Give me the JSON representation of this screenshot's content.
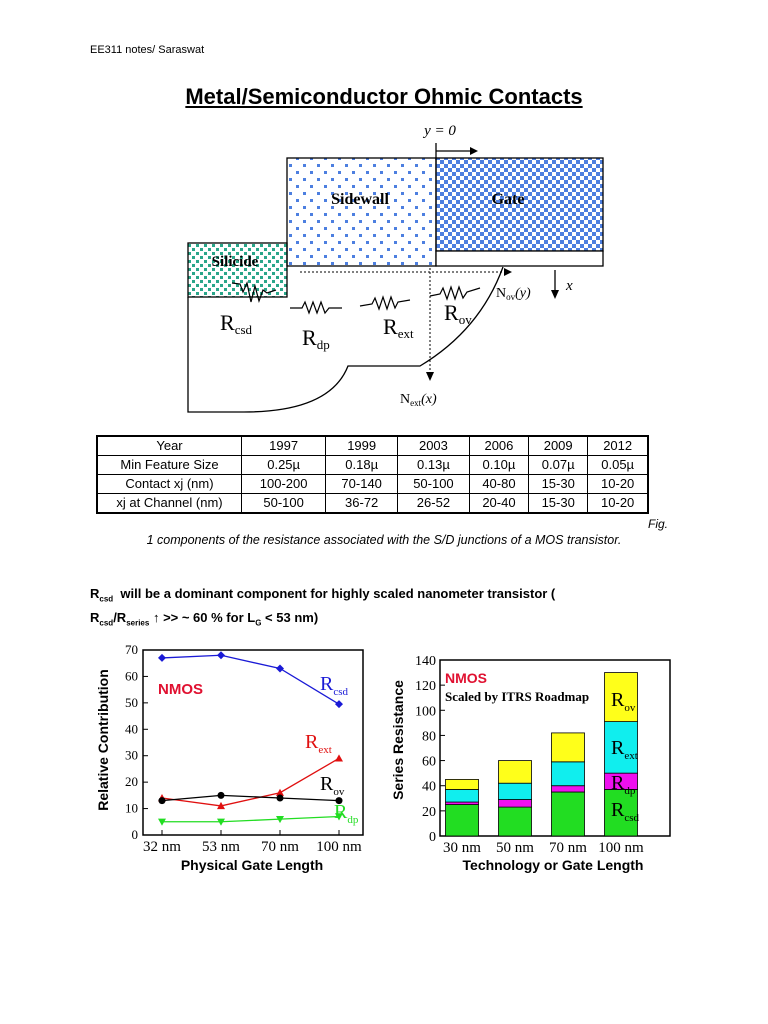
{
  "header": {
    "note": "EE311 notes/ Saraswat"
  },
  "title": "Metal/Semiconductor Ohmic Contacts",
  "diagram": {
    "y0_label": "y = 0",
    "sidewall": "Sidewall",
    "gate": "Gate",
    "silicide": "Silicide",
    "x_label": "x",
    "nov_main": "N",
    "nov_sub": "ov",
    "nov_arg": "(y)",
    "next_main": "N",
    "next_sub": "ext",
    "next_arg": "(x)",
    "resistors": [
      {
        "main": "R",
        "sub": "csd"
      },
      {
        "main": "R",
        "sub": "dp"
      },
      {
        "main": "R",
        "sub": "ext"
      },
      {
        "main": "R",
        "sub": "ov"
      }
    ],
    "colors": {
      "sidewall_dot": "#4d7fe0",
      "gate_check": "#4d7fe0",
      "silicide_dot": "#2aa68a"
    }
  },
  "table": {
    "headers": [
      "Year",
      "1997",
      "1999",
      "2003",
      "2006",
      "2009",
      "2012"
    ],
    "rows": [
      [
        "Min Feature Size",
        "0.25µ",
        "0.18µ",
        "0.13µ",
        "0.10µ",
        "0.07µ",
        "0.05µ"
      ],
      [
        "Contact xj (nm)",
        "100-200",
        "70-140",
        "50-100",
        "40-80",
        "15-30",
        "10-20"
      ],
      [
        "xj at Channel (nm)",
        "50-100",
        "36-72",
        "26-52",
        "20-40",
        "15-30",
        "10-20"
      ]
    ]
  },
  "caption": {
    "fig": "Fig.",
    "text": "1 components of the resistance associated with the S/D junctions of a MOS transistor."
  },
  "statement": {
    "line1": "will be a dominant component for highly scaled nanometer transistor  (",
    "line2": ">> ~ 60 % for L",
    "line2_end": "< 53 nm)"
  },
  "chart_data": [
    {
      "type": "line",
      "xlabel": "Physical Gate Length",
      "ylabel": "Relative Contribution",
      "categories": [
        "32 nm",
        "53 nm",
        "70 nm",
        "100 nm"
      ],
      "ylim": [
        0,
        70
      ],
      "yticks": [
        0,
        10,
        20,
        30,
        40,
        50,
        60,
        70
      ],
      "annotation": "NMOS",
      "series": [
        {
          "name": "Rcsd",
          "label_main": "R",
          "label_sub": "csd",
          "color": "#1a1ad6",
          "marker": "diamond",
          "values": [
            67,
            68,
            63,
            49.5
          ]
        },
        {
          "name": "Rext",
          "label_main": "R",
          "label_sub": "ext",
          "color": "#e01010",
          "marker": "triangle",
          "values": [
            14,
            11,
            16,
            29
          ]
        },
        {
          "name": "Rov",
          "label_main": "R",
          "label_sub": "ov",
          "color": "#000000",
          "marker": "circle",
          "values": [
            13,
            15,
            14,
            13
          ]
        },
        {
          "name": "Rdp",
          "label_main": "R",
          "label_sub": "dp",
          "color": "#22dd22",
          "marker": "triangle-down",
          "values": [
            5,
            5,
            6,
            7
          ]
        }
      ]
    },
    {
      "type": "bar",
      "stacked": true,
      "xlabel": "Technology or Gate Length",
      "ylabel": "Series Resistance",
      "categories": [
        "30 nm",
        "50 nm",
        "70 nm",
        "100 nm"
      ],
      "ylim": [
        0,
        140
      ],
      "yticks": [
        0,
        20,
        40,
        60,
        80,
        100,
        120,
        140
      ],
      "annotation": "NMOS",
      "subtitle": "Scaled by ITRS Roadmap",
      "series": [
        {
          "name": "Rcsd",
          "label_main": "R",
          "label_sub": "csd",
          "color": "#22dd22",
          "values": [
            25,
            23,
            35,
            37
          ]
        },
        {
          "name": "Rdp",
          "label_main": "R",
          "label_sub": "dp",
          "color": "#ee10ee",
          "values": [
            2,
            6,
            5,
            13
          ]
        },
        {
          "name": "Rext",
          "label_main": "R",
          "label_sub": "ext",
          "color": "#10eeee",
          "values": [
            10,
            13,
            19,
            41
          ]
        },
        {
          "name": "Rov",
          "label_main": "R",
          "label_sub": "ov",
          "color": "#ffff1a",
          "values": [
            8,
            18,
            23,
            39
          ]
        }
      ]
    }
  ]
}
